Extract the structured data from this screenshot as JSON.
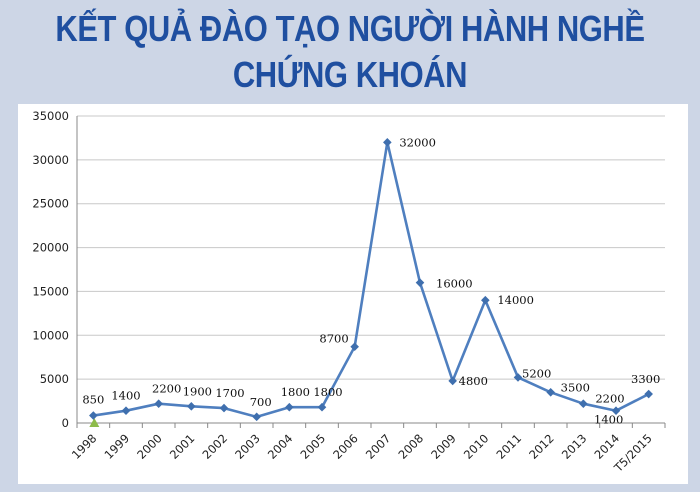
{
  "page": {
    "title_line1": "KẾT QUẢ ĐÀO TẠO NGƯỜI HÀNH NGHỀ",
    "title_line2": "CHỨNG KHOÁN"
  },
  "colors": {
    "background": "#cdd6e6",
    "title": "#1f4fa0",
    "line": "#4f7fbf",
    "marker": "#3f6fae",
    "grid": "#c8c8c8",
    "accent_marker": "#8dbb4a"
  },
  "chart_data": {
    "type": "line",
    "title": "KẾT QUẢ ĐÀO TẠO NGƯỜI HÀNH NGHỀ CHỨNG KHOÁN",
    "xlabel": "",
    "ylabel": "",
    "ylim": [
      0,
      35000
    ],
    "yticks": [
      0,
      5000,
      10000,
      15000,
      20000,
      25000,
      30000,
      35000
    ],
    "grid": true,
    "legend": "none",
    "categories": [
      "1998",
      "1999",
      "2000",
      "2001",
      "2002",
      "2003",
      "2004",
      "2005",
      "2006",
      "2007",
      "2008",
      "2009",
      "2010",
      "2011",
      "2012",
      "2013",
      "2014",
      "T5/2015"
    ],
    "series": [
      {
        "values": [
          850,
          1400,
          2200,
          1900,
          1700,
          700,
          1800,
          1800,
          8700,
          32000,
          16000,
          4800,
          14000,
          5200,
          3500,
          2200,
          1400,
          3300
        ]
      }
    ],
    "data_labels": [
      "850",
      "1400",
      "2200",
      "1900",
      "1700",
      "700",
      "1800",
      "1800",
      "8700",
      "32000",
      "16000",
      "4800",
      "14000",
      "5200",
      "3500",
      "2200",
      "1400",
      "3300"
    ]
  }
}
